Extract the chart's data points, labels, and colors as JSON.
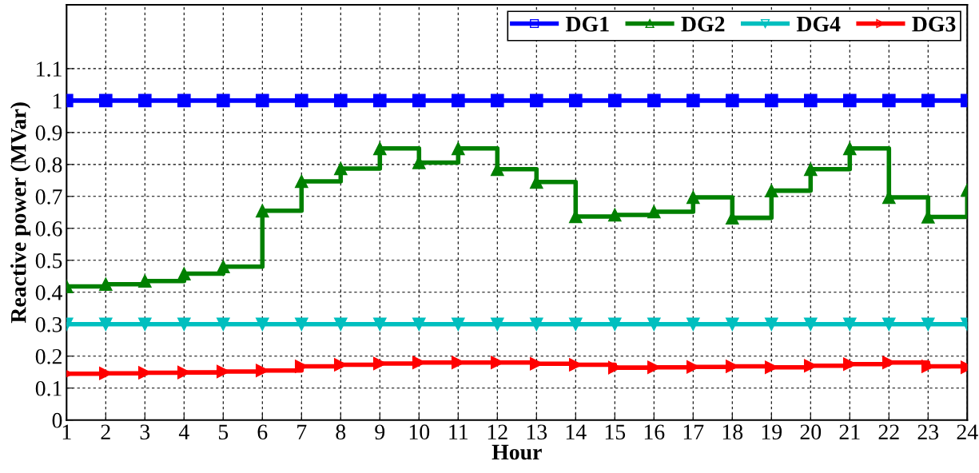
{
  "chart_data": {
    "type": "step",
    "xlabel": "Hour",
    "ylabel": "Reactive power (MVar)",
    "x": [
      1,
      2,
      3,
      4,
      5,
      6,
      7,
      8,
      9,
      10,
      11,
      12,
      13,
      14,
      15,
      16,
      17,
      18,
      19,
      20,
      21,
      22,
      23,
      24
    ],
    "series": [
      {
        "name": "DG1",
        "color": "#0000ff",
        "marker": "square",
        "values": [
          1,
          1,
          1,
          1,
          1,
          1,
          1,
          1,
          1,
          1,
          1,
          1,
          1,
          1,
          1,
          1,
          1,
          1,
          1,
          1,
          1,
          1,
          1,
          1
        ]
      },
      {
        "name": "DG2",
        "color": "#008000",
        "marker": "triangle",
        "values": [
          0.418,
          0.425,
          0.435,
          0.458,
          0.48,
          0.655,
          0.747,
          0.787,
          0.85,
          0.806,
          0.85,
          0.785,
          0.745,
          0.637,
          0.642,
          0.652,
          0.697,
          0.633,
          0.718,
          0.785,
          0.85,
          0.697,
          0.636,
          0.72
        ]
      },
      {
        "name": "DG4",
        "color": "#00bfbf",
        "marker": "triangle-down",
        "values": [
          0.3,
          0.3,
          0.3,
          0.3,
          0.3,
          0.3,
          0.3,
          0.3,
          0.3,
          0.3,
          0.3,
          0.3,
          0.3,
          0.3,
          0.3,
          0.3,
          0.3,
          0.3,
          0.3,
          0.3,
          0.3,
          0.3,
          0.3,
          0.3
        ]
      },
      {
        "name": "DG3",
        "color": "#ff0000",
        "marker": "triangle-right",
        "values": [
          0.145,
          0.146,
          0.148,
          0.149,
          0.152,
          0.155,
          0.168,
          0.173,
          0.177,
          0.18,
          0.18,
          0.18,
          0.176,
          0.173,
          0.164,
          0.165,
          0.166,
          0.168,
          0.165,
          0.17,
          0.175,
          0.18,
          0.168,
          0.165
        ]
      }
    ],
    "xlim": [
      1,
      24
    ],
    "xticks": [
      1,
      2,
      3,
      4,
      5,
      6,
      7,
      8,
      9,
      10,
      11,
      12,
      13,
      14,
      15,
      16,
      17,
      18,
      19,
      20,
      21,
      22,
      23,
      24
    ],
    "ylim": [
      0,
      1.3
    ],
    "yticks": [
      0,
      0.1,
      0.2,
      0.3,
      0.4,
      0.5,
      0.6,
      0.7,
      0.8,
      0.9,
      1,
      1.1
    ],
    "grid": true,
    "legend": "top right",
    "line_style": "solid"
  }
}
